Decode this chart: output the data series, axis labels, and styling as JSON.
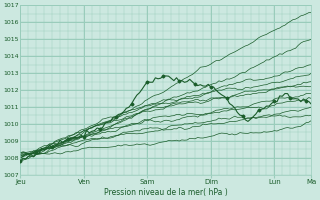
{
  "background_color": "#cce8e0",
  "plot_bg_color": "#cce8e0",
  "grid_color": "#99ccbb",
  "line_color": "#1a5c2a",
  "marker_color": "#1a5c2a",
  "ylim": [
    1007,
    1017
  ],
  "yticks": [
    1007,
    1008,
    1009,
    1010,
    1011,
    1012,
    1013,
    1014,
    1015,
    1016,
    1017
  ],
  "xlabel": "Pression niveau de la mer( hPa )",
  "day_labels": [
    "Jeu",
    "Ven",
    "Sam",
    "Dim",
    "Lun",
    "Ma"
  ],
  "day_positions": [
    0,
    24,
    48,
    72,
    96,
    110
  ],
  "total_hours": 110,
  "minor_grid_every": 3
}
